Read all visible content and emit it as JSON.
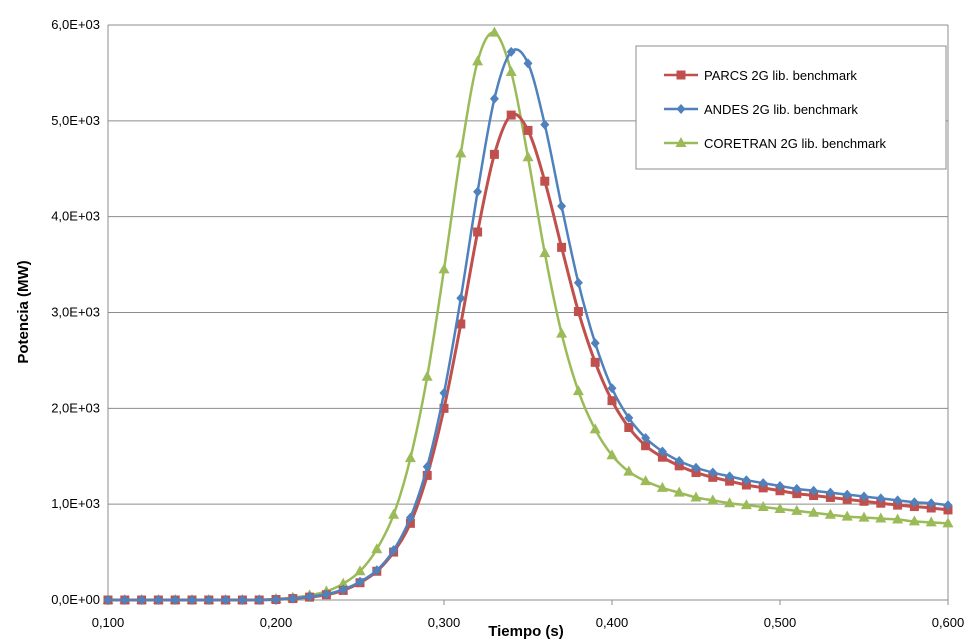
{
  "chart_data": {
    "type": "line",
    "title": "",
    "xlabel": "Tiempo (s)",
    "ylabel": "Potencia (MW)",
    "xlim": [
      0.1,
      0.6
    ],
    "ylim": [
      0,
      6000
    ],
    "x_ticks": [
      "0,100",
      "0,200",
      "0,300",
      "0,400",
      "0,500",
      "0,600"
    ],
    "y_ticks": [
      "0,0E+00",
      "1,0E+03",
      "2,0E+03",
      "3,0E+03",
      "4,0E+03",
      "5,0E+03",
      "6,0E+03"
    ],
    "grid": "horizontal",
    "legend_position": "top-right",
    "x": [
      0.1,
      0.11,
      0.12,
      0.13,
      0.14,
      0.15,
      0.16,
      0.17,
      0.18,
      0.19,
      0.2,
      0.21,
      0.22,
      0.23,
      0.24,
      0.25,
      0.26,
      0.27,
      0.28,
      0.29,
      0.3,
      0.31,
      0.32,
      0.33,
      0.34,
      0.35,
      0.36,
      0.37,
      0.38,
      0.39,
      0.4,
      0.41,
      0.42,
      0.43,
      0.44,
      0.45,
      0.46,
      0.47,
      0.48,
      0.49,
      0.5,
      0.51,
      0.52,
      0.53,
      0.54,
      0.55,
      0.56,
      0.57,
      0.58,
      0.59,
      0.6
    ],
    "series": [
      {
        "name": "PARCS 2G lib. benchmark",
        "color": "#c0504d",
        "marker": "square",
        "values": [
          0,
          0,
          0,
          0,
          0,
          0,
          0,
          0,
          0,
          0,
          5,
          15,
          30,
          55,
          100,
          180,
          300,
          500,
          800,
          1300,
          2000,
          2880,
          3840,
          4650,
          5060,
          4900,
          4370,
          3680,
          3010,
          2480,
          2080,
          1800,
          1610,
          1490,
          1400,
          1330,
          1280,
          1240,
          1200,
          1170,
          1140,
          1110,
          1090,
          1070,
          1050,
          1030,
          1010,
          990,
          975,
          960,
          940
        ]
      },
      {
        "name": "ANDES 2G lib. benchmark",
        "color": "#4f81bd",
        "marker": "diamond",
        "values": [
          0,
          0,
          0,
          0,
          0,
          0,
          0,
          0,
          0,
          0,
          5,
          15,
          35,
          60,
          110,
          190,
          310,
          520,
          860,
          1390,
          2160,
          3150,
          4260,
          5230,
          5720,
          5600,
          4960,
          4110,
          3310,
          2680,
          2210,
          1900,
          1690,
          1550,
          1450,
          1380,
          1330,
          1290,
          1250,
          1220,
          1190,
          1160,
          1140,
          1120,
          1100,
          1080,
          1060,
          1040,
          1020,
          1010,
          990
        ]
      },
      {
        "name": "CORETRAN 2G lib. benchmark",
        "color": "#9bbb59",
        "marker": "triangle",
        "values": [
          0,
          0,
          0,
          0,
          0,
          0,
          0,
          0,
          0,
          0,
          10,
          25,
          50,
          90,
          170,
          300,
          530,
          890,
          1480,
          2330,
          3450,
          4660,
          5620,
          5920,
          5510,
          4620,
          3620,
          2780,
          2180,
          1780,
          1510,
          1340,
          1240,
          1170,
          1120,
          1070,
          1040,
          1010,
          990,
          970,
          950,
          930,
          910,
          890,
          870,
          860,
          850,
          840,
          820,
          810,
          800
        ]
      }
    ]
  }
}
